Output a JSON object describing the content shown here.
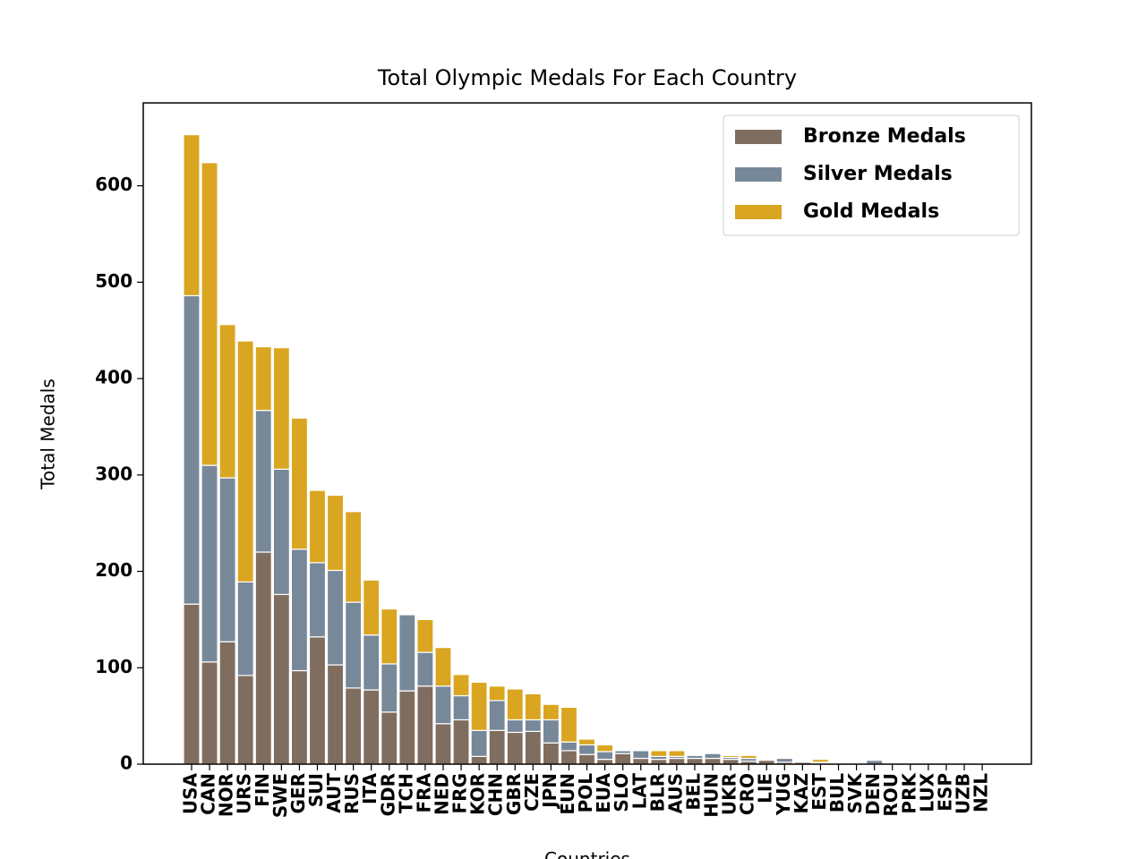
{
  "chart_data": {
    "type": "stacked_bar",
    "title": "Total Olympic Medals For Each Country",
    "xlabel": "Countries",
    "ylabel": "Total Medals",
    "categories": [
      "USA",
      "CAN",
      "NOR",
      "URS",
      "FIN",
      "SWE",
      "GER",
      "SUI",
      "AUT",
      "RUS",
      "ITA",
      "GDR",
      "TCH",
      "FRA",
      "NED",
      "FRG",
      "KOR",
      "CHN",
      "GBR",
      "CZE",
      "JPN",
      "EUN",
      "POL",
      "EUA",
      "SLO",
      "LAT",
      "BLR",
      "AUS",
      "BEL",
      "HUN",
      "UKR",
      "CRO",
      "LIE",
      "YUG",
      "KAZ",
      "EST",
      "BUL",
      "SVK",
      "DEN",
      "ROU",
      "PRK",
      "LUX",
      "ESP",
      "UZB",
      "NZL"
    ],
    "series": [
      {
        "name": "Bronze Medals",
        "color": "#7f6d5f",
        "values": [
          166,
          106,
          127,
          92,
          220,
          176,
          97,
          132,
          103,
          79,
          77,
          54,
          76,
          81,
          42,
          46,
          8,
          35,
          33,
          34,
          22,
          14,
          10,
          5,
          11,
          6,
          5,
          6,
          6,
          6,
          5,
          3,
          4,
          2,
          2,
          1,
          1,
          1,
          0,
          1,
          0,
          0,
          1,
          0,
          0
        ]
      },
      {
        "name": "Silver Medals",
        "color": "#778899",
        "values": [
          320,
          204,
          170,
          97,
          147,
          130,
          126,
          77,
          98,
          89,
          57,
          50,
          79,
          35,
          39,
          25,
          27,
          31,
          13,
          12,
          24,
          9,
          10,
          8,
          3,
          8,
          3,
          2,
          3,
          5,
          2,
          3,
          0,
          4,
          1,
          1,
          0,
          1,
          4,
          0,
          1,
          1,
          0,
          0,
          1
        ]
      },
      {
        "name": "Gold Medals",
        "color": "#daa520",
        "values": [
          167,
          314,
          159,
          250,
          66,
          126,
          136,
          75,
          78,
          94,
          57,
          57,
          0,
          34,
          40,
          22,
          50,
          15,
          32,
          27,
          16,
          36,
          6,
          7,
          1,
          0,
          6,
          6,
          0,
          0,
          2,
          3,
          0,
          0,
          1,
          3,
          0,
          0,
          0,
          0,
          0,
          0,
          0,
          1,
          0
        ]
      }
    ],
    "ylim": [
      0,
      686
    ],
    "yticks": [
      0,
      100,
      200,
      300,
      400,
      500,
      600
    ],
    "legend": "upper right"
  }
}
